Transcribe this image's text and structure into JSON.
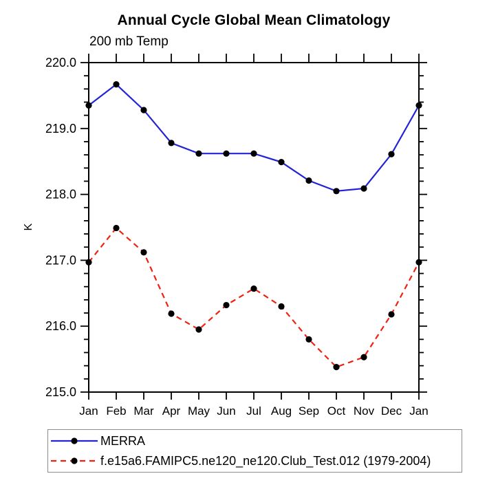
{
  "title": "Annual Cycle Global Mean Climatology",
  "subtitle": "200 mb Temp",
  "ylabel": "K",
  "chart_data": {
    "type": "line",
    "categories": [
      "Jan",
      "Feb",
      "Mar",
      "Apr",
      "May",
      "Jun",
      "Jul",
      "Aug",
      "Sep",
      "Oct",
      "Nov",
      "Dec",
      "Jan"
    ],
    "series": [
      {
        "name": "MERRA",
        "color": "#2222d6",
        "line_style": "solid",
        "marker": "black-filled-circle",
        "values": [
          219.35,
          219.67,
          219.28,
          218.78,
          218.62,
          218.62,
          218.62,
          218.49,
          218.21,
          218.05,
          218.09,
          218.61,
          219.35
        ]
      },
      {
        "name": "f.e15a6.FAMIPC5.ne120_ne120.Club_Test.012 (1979-2004)",
        "color": "#ee2211",
        "line_style": "dashed",
        "marker": "black-filled-circle",
        "values": [
          216.97,
          217.49,
          217.12,
          216.19,
          215.95,
          216.32,
          216.57,
          216.3,
          215.8,
          215.38,
          215.53,
          216.18,
          216.97
        ]
      }
    ],
    "ylim": [
      215.0,
      220.0
    ],
    "ytick_labels": [
      "220.0",
      "219.0",
      "218.0",
      "217.0",
      "216.0",
      "215.0"
    ],
    "ytick_major_interval": 1.0,
    "ytick_minor_interval": 0.2,
    "grid": false,
    "legend_position": "bottom-left-boxed"
  },
  "colors": {
    "axis": "#000000",
    "marker": "#000000",
    "merra_blue": "#2222d6",
    "model_red": "#ee2211",
    "legend_border": "#8c8c8c"
  }
}
